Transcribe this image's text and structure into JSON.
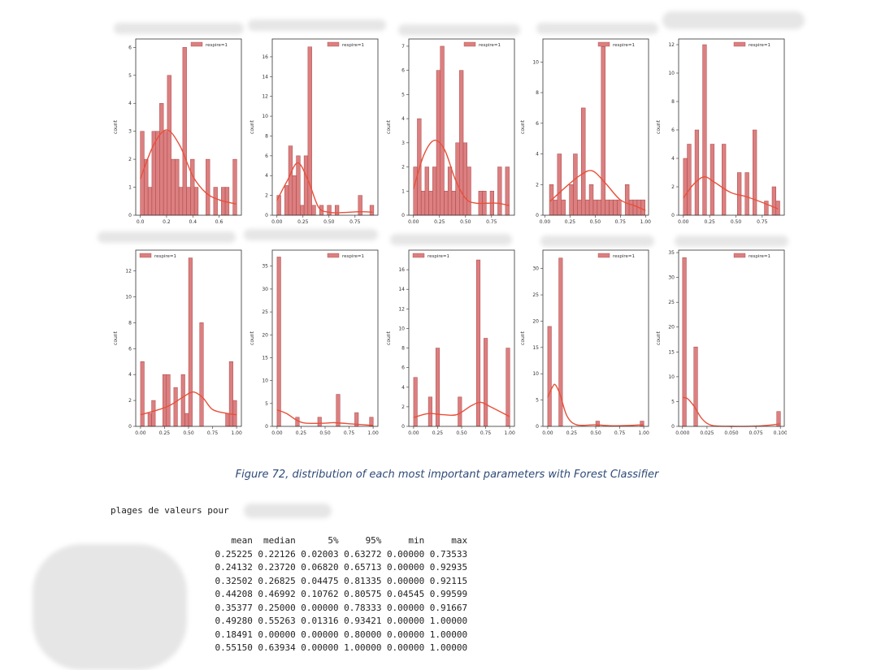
{
  "caption": "Figure 72, distribution of each most important parameters with Forest Classifier",
  "ranges_label": "plages de valeurs pour",
  "table": {
    "columns": [
      "mean",
      "median",
      "5%",
      "95%",
      "min",
      "max"
    ],
    "rows": [
      [
        "0.25225",
        "0.22126",
        "0.02003",
        "0.63272",
        "0.00000",
        "0.73533"
      ],
      [
        "0.24132",
        "0.23720",
        "0.06820",
        "0.65713",
        "0.00000",
        "0.92935"
      ],
      [
        "0.32502",
        "0.26825",
        "0.04475",
        "0.81335",
        "0.00000",
        "0.92115"
      ],
      [
        "0.44208",
        "0.46992",
        "0.10762",
        "0.80575",
        "0.04545",
        "0.99599"
      ],
      [
        "0.35377",
        "0.25000",
        "0.00000",
        "0.78333",
        "0.00000",
        "0.91667"
      ],
      [
        "0.49280",
        "0.55263",
        "0.01316",
        "0.93421",
        "0.00000",
        "1.00000"
      ],
      [
        "0.18491",
        "0.00000",
        "0.00000",
        "0.80000",
        "0.00000",
        "1.00000"
      ],
      [
        "0.55150",
        "0.63934",
        "0.00000",
        "1.00000",
        "0.00000",
        "1.00000"
      ]
    ]
  },
  "colors": {
    "bar_fill": "#dc7f80",
    "bar_edge": "#a94545",
    "kde": "#e8503a",
    "caption": "#2e4a78"
  },
  "chart_data": [
    {
      "type": "bar",
      "legend": "respire=1",
      "legend_position": "top-right",
      "ylabel": "count",
      "xlim": [
        -0.035,
        0.77
      ],
      "ylim": [
        0,
        6.3
      ],
      "xticks": [
        "0.0",
        "0.2",
        "0.4",
        "0.6"
      ],
      "xtick_values": [
        0,
        0.2,
        0.4,
        0.6
      ],
      "yticks": [
        0,
        1,
        2,
        3,
        4,
        5,
        6
      ],
      "bin_start": 0,
      "bin_width": 0.0294,
      "counts": [
        3,
        2,
        1,
        3,
        3,
        4,
        3,
        5,
        2,
        2,
        1,
        6,
        1,
        2,
        1,
        0,
        0,
        2,
        0,
        1,
        0,
        1,
        1,
        0,
        2
      ],
      "kde": [
        [
          0,
          1.3
        ],
        [
          0.1,
          2.5
        ],
        [
          0.2,
          3.05
        ],
        [
          0.3,
          2.5
        ],
        [
          0.4,
          1.4
        ],
        [
          0.5,
          0.8
        ],
        [
          0.6,
          0.55
        ],
        [
          0.73,
          0.4
        ]
      ]
    },
    {
      "type": "bar",
      "legend": "respire=1",
      "legend_position": "top-right",
      "ylabel": "count",
      "xlim": [
        -0.045,
        0.97
      ],
      "ylim": [
        0,
        17.8
      ],
      "xticks": [
        "0.00",
        "0.25",
        "0.50",
        "0.75"
      ],
      "xtick_values": [
        0,
        0.25,
        0.5,
        0.75
      ],
      "yticks": [
        0,
        2,
        4,
        6,
        8,
        10,
        12,
        14,
        16
      ],
      "bin_start": 0,
      "bin_width": 0.0372,
      "counts": [
        2,
        0,
        3,
        7,
        4,
        6,
        1,
        6,
        17,
        1,
        0,
        1,
        0,
        1,
        0,
        1,
        0,
        0,
        0,
        0,
        0,
        2,
        0,
        0,
        1
      ],
      "kde": [
        [
          0,
          1.5
        ],
        [
          0.1,
          3.5
        ],
        [
          0.2,
          5.3
        ],
        [
          0.3,
          3.5
        ],
        [
          0.4,
          0.8
        ],
        [
          0.5,
          0.3
        ],
        [
          0.6,
          0.25
        ],
        [
          0.8,
          0.35
        ],
        [
          0.92,
          0.3
        ]
      ]
    },
    {
      "type": "bar",
      "legend": "respire=1",
      "legend_position": "top-right",
      "ylabel": "count",
      "xlim": [
        -0.045,
        0.97
      ],
      "ylim": [
        0,
        7.3
      ],
      "xticks": [
        "0.00",
        "0.25",
        "0.50",
        "0.75"
      ],
      "xtick_values": [
        0,
        0.25,
        0.5,
        0.75
      ],
      "yticks": [
        0,
        1,
        2,
        3,
        4,
        5,
        6,
        7
      ],
      "bin_start": 0,
      "bin_width": 0.0368,
      "counts": [
        2,
        4,
        1,
        2,
        1,
        2,
        6,
        7,
        1,
        2,
        1,
        3,
        6,
        3,
        2,
        0,
        0,
        1,
        1,
        0,
        1,
        0,
        2,
        0,
        2
      ],
      "kde": [
        [
          0,
          1.1
        ],
        [
          0.1,
          2.5
        ],
        [
          0.2,
          3.1
        ],
        [
          0.3,
          2.7
        ],
        [
          0.4,
          1.5
        ],
        [
          0.5,
          0.7
        ],
        [
          0.6,
          0.5
        ],
        [
          0.8,
          0.5
        ],
        [
          0.92,
          0.4
        ]
      ]
    },
    {
      "type": "bar",
      "legend": "respire=1",
      "legend_position": "top-right",
      "ylabel": "count",
      "xlim": [
        -0.02,
        1.03
      ],
      "ylim": [
        0,
        11.5
      ],
      "xticks": [
        "0.00",
        "0.25",
        "0.50",
        "0.75",
        "1.00"
      ],
      "xtick_values": [
        0,
        0.25,
        0.5,
        0.75,
        1
      ],
      "yticks": [
        0,
        2,
        4,
        6,
        8,
        10
      ],
      "bin_start": 0.045,
      "bin_width": 0.0396,
      "counts": [
        2,
        1,
        4,
        1,
        0,
        2,
        4,
        1,
        7,
        1,
        2,
        1,
        1,
        11,
        1,
        1,
        1,
        1,
        0,
        2,
        1,
        1,
        1,
        1
      ],
      "kde": [
        [
          0.05,
          0.9
        ],
        [
          0.2,
          1.8
        ],
        [
          0.35,
          2.6
        ],
        [
          0.47,
          2.9
        ],
        [
          0.6,
          2.1
        ],
        [
          0.75,
          1.0
        ],
        [
          0.9,
          0.6
        ],
        [
          1.0,
          0.3
        ]
      ]
    },
    {
      "type": "bar",
      "legend": "respire=1",
      "legend_position": "top-right",
      "ylabel": "count",
      "xlim": [
        -0.045,
        0.96
      ],
      "ylim": [
        0,
        12.4
      ],
      "xticks": [
        "0.00",
        "0.25",
        "0.50",
        "0.75"
      ],
      "xtick_values": [
        0,
        0.25,
        0.5,
        0.75
      ],
      "yticks": [
        0,
        2,
        4,
        6,
        8,
        10,
        12
      ],
      "bin_start": 0,
      "bin_width": 0.0367,
      "counts": [
        4,
        5,
        0,
        6,
        0,
        12,
        0,
        5,
        0,
        0,
        5,
        0,
        0,
        0,
        3,
        0,
        3,
        0,
        6,
        0,
        0,
        1,
        0,
        2,
        1
      ],
      "kde": [
        [
          0,
          1.2
        ],
        [
          0.1,
          2.2
        ],
        [
          0.2,
          2.7
        ],
        [
          0.3,
          2.3
        ],
        [
          0.45,
          1.6
        ],
        [
          0.6,
          1.3
        ],
        [
          0.75,
          0.9
        ],
        [
          0.9,
          0.45
        ]
      ]
    },
    {
      "type": "bar",
      "legend": "respire=1",
      "legend_position": "top-left",
      "ylabel": "count",
      "xlim": [
        -0.05,
        1.05
      ],
      "ylim": [
        0,
        13.6
      ],
      "xticks": [
        "0.00",
        "0.25",
        "0.50",
        "0.75",
        "1.00"
      ],
      "xtick_values": [
        0,
        0.25,
        0.5,
        0.75,
        1
      ],
      "yticks": [
        0,
        2,
        4,
        6,
        8,
        10,
        12
      ],
      "bin_start": 0,
      "bin_width": 0.0385,
      "counts": [
        5,
        0,
        1,
        2,
        0,
        0,
        4,
        4,
        0,
        3,
        0,
        4,
        1,
        13,
        0,
        0,
        8,
        0,
        0,
        0,
        0,
        0,
        0,
        1,
        5,
        2
      ],
      "kde": [
        [
          0,
          0.9
        ],
        [
          0.15,
          1.2
        ],
        [
          0.3,
          1.6
        ],
        [
          0.45,
          2.3
        ],
        [
          0.55,
          2.65
        ],
        [
          0.65,
          2.2
        ],
        [
          0.75,
          1.3
        ],
        [
          0.9,
          1.0
        ],
        [
          1.0,
          0.9
        ]
      ]
    },
    {
      "type": "bar",
      "legend": "respire=1",
      "legend_position": "top-right",
      "ylabel": "count",
      "xlim": [
        -0.05,
        1.05
      ],
      "ylim": [
        0,
        38.5
      ],
      "xticks": [
        "0.00",
        "0.25",
        "0.50",
        "0.75",
        "1.00"
      ],
      "xtick_values": [
        0,
        0.25,
        0.5,
        0.75,
        1
      ],
      "yticks": [
        0,
        5,
        10,
        15,
        20,
        25,
        30,
        35
      ],
      "bin_start": 0,
      "bin_width": 0.0385,
      "counts": [
        37,
        0,
        0,
        0,
        0,
        2,
        0,
        0,
        0,
        0,
        0,
        2,
        0,
        0,
        0,
        0,
        7,
        0,
        0,
        0,
        0,
        3,
        0,
        0,
        0,
        2
      ],
      "kde": [
        [
          0,
          3.6
        ],
        [
          0.1,
          2.8
        ],
        [
          0.2,
          1.4
        ],
        [
          0.3,
          0.7
        ],
        [
          0.5,
          0.7
        ],
        [
          0.6,
          0.8
        ],
        [
          0.8,
          0.5
        ],
        [
          1.0,
          0.2
        ]
      ]
    },
    {
      "type": "bar",
      "legend": "respire=1",
      "legend_position": "top-left",
      "ylabel": "count",
      "xlim": [
        -0.05,
        1.05
      ],
      "ylim": [
        0,
        18
      ],
      "xticks": [
        "0.00",
        "0.25",
        "0.50",
        "0.75",
        "1.00"
      ],
      "xtick_values": [
        0,
        0.25,
        0.5,
        0.75,
        1
      ],
      "yticks": [
        0,
        2,
        4,
        6,
        8,
        10,
        12,
        14,
        16
      ],
      "bin_start": 0,
      "bin_width": 0.0385,
      "counts": [
        5,
        0,
        0,
        0,
        3,
        0,
        8,
        0,
        0,
        0,
        0,
        0,
        3,
        0,
        0,
        0,
        0,
        17,
        0,
        9,
        0,
        0,
        0,
        0,
        0,
        8
      ],
      "kde": [
        [
          0,
          0.9
        ],
        [
          0.15,
          1.3
        ],
        [
          0.3,
          1.2
        ],
        [
          0.45,
          1.2
        ],
        [
          0.6,
          2.1
        ],
        [
          0.7,
          2.45
        ],
        [
          0.8,
          2.0
        ],
        [
          1.0,
          1.0
        ]
      ]
    },
    {
      "type": "bar",
      "legend": "respire=1",
      "legend_position": "top-right",
      "ylabel": "count",
      "xlim": [
        -0.05,
        1.05
      ],
      "ylim": [
        0,
        33.5
      ],
      "xticks": [
        "0.00",
        "0.25",
        "0.50",
        "0.75",
        "1.00"
      ],
      "xtick_values": [
        0,
        0.25,
        0.5,
        0.75,
        1
      ],
      "yticks": [
        0,
        5,
        10,
        15,
        20,
        25,
        30
      ],
      "bin_start": 0,
      "bin_width": 0.0385,
      "counts": [
        19,
        0,
        0,
        32,
        0,
        0,
        0,
        0,
        0,
        0,
        0,
        0,
        0,
        1,
        0,
        0,
        0,
        0,
        0,
        0,
        0,
        0,
        0,
        0,
        0,
        1
      ],
      "kde": [
        [
          0,
          5.5
        ],
        [
          0.05,
          7.5
        ],
        [
          0.08,
          7.9
        ],
        [
          0.13,
          6
        ],
        [
          0.2,
          2
        ],
        [
          0.3,
          0.3
        ],
        [
          0.5,
          0.3
        ],
        [
          0.7,
          0.1
        ],
        [
          1.0,
          0.3
        ]
      ]
    },
    {
      "type": "bar",
      "legend": "respire=1",
      "legend_position": "top-right",
      "ylabel": "count",
      "xlim": [
        -0.004,
        0.104
      ],
      "ylim": [
        0,
        35.5
      ],
      "xticks": [
        "0.000",
        "0.025",
        "0.050",
        "0.075",
        "0.100"
      ],
      "xtick_values": [
        0,
        0.025,
        0.05,
        0.075,
        0.1
      ],
      "yticks": [
        0,
        5,
        10,
        15,
        20,
        25,
        30,
        35
      ],
      "bin_start": 0,
      "bin_width": 0.00385,
      "counts": [
        34,
        0,
        0,
        16,
        0,
        0,
        0,
        0,
        0,
        0,
        0,
        0,
        0,
        0,
        0,
        0,
        0,
        0,
        0,
        0,
        0,
        0,
        0,
        0,
        0,
        3
      ],
      "kde": [
        [
          0,
          5.8
        ],
        [
          0.005,
          5.6
        ],
        [
          0.012,
          4
        ],
        [
          0.02,
          1.5
        ],
        [
          0.03,
          0.2
        ],
        [
          0.05,
          0
        ],
        [
          0.08,
          0.1
        ],
        [
          0.1,
          0.5
        ]
      ]
    }
  ]
}
